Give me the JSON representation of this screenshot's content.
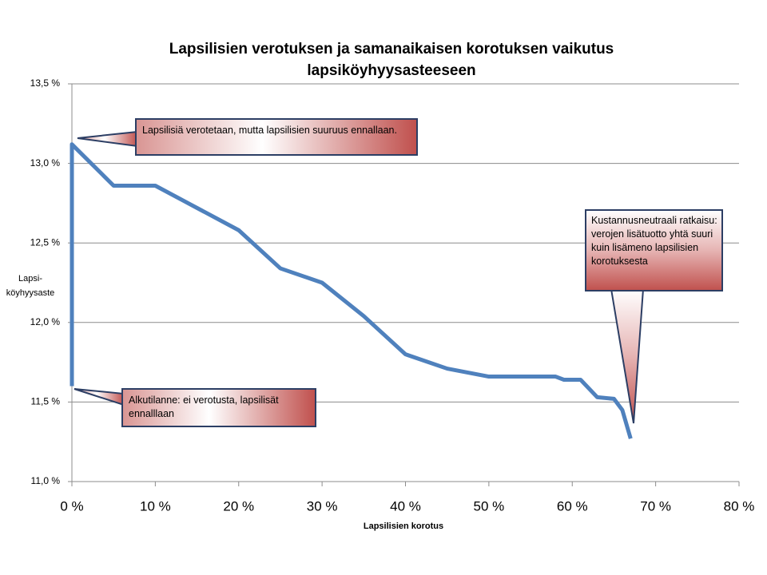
{
  "chart_data": {
    "type": "line",
    "title": "Lapsilisien verotuksen ja samanaikaisen korotuksen vaikutus lapsiköyhyysasteeseen",
    "x_label": "Lapsilisien korotus",
    "y_label": "Lapsi-\nköyhyysaste",
    "x": [
      0,
      0,
      5,
      10,
      15,
      20,
      25,
      30,
      35,
      40,
      45,
      50,
      55,
      58,
      59,
      61,
      63,
      65,
      66,
      67
    ],
    "series": [
      {
        "color": "#4f81bd",
        "values": [
          11.6,
          13.12,
          12.86,
          12.86,
          12.72,
          12.58,
          12.34,
          12.25,
          12.04,
          11.8,
          11.71,
          11.66,
          11.66,
          11.66,
          11.64,
          11.64,
          11.53,
          11.52,
          11.45,
          11.27
        ]
      }
    ],
    "xlim": [
      0,
      80
    ],
    "xticks": [
      {
        "value": 0,
        "label": "0 %"
      },
      {
        "value": 10,
        "label": "10 %"
      },
      {
        "value": 20,
        "label": "20 %"
      },
      {
        "value": 30,
        "label": "30 %"
      },
      {
        "value": 40,
        "label": "40 %"
      },
      {
        "value": 50,
        "label": "50 %"
      },
      {
        "value": 60,
        "label": "60 %"
      },
      {
        "value": 70,
        "label": "70 %"
      },
      {
        "value": 80,
        "label": "80 %"
      }
    ],
    "ylim": [
      11.0,
      13.5
    ],
    "yticks": [
      {
        "value": 11.0,
        "label": "11,0 %"
      },
      {
        "value": 11.5,
        "label": "11,5 %"
      },
      {
        "value": 12.0,
        "label": "12,0 %"
      },
      {
        "value": 12.5,
        "label": "12,5 %"
      },
      {
        "value": 13.0,
        "label": "13,0 %"
      },
      {
        "value": 13.5,
        "label": "13,5 %"
      }
    ],
    "grid": true,
    "annotations": [
      {
        "text": "Lapsilisiä verotetaan, mutta lapsilisien suuruus ennallaan."
      },
      {
        "text": "Alkutilanne: ei verotusta, lapsilisät ennalllaan"
      },
      {
        "text": "Kustannusneutraali ratkaisu: verojen lisätuotto yhtä suuri kuin lisämeno lapsilisien korotuksesta"
      }
    ]
  }
}
